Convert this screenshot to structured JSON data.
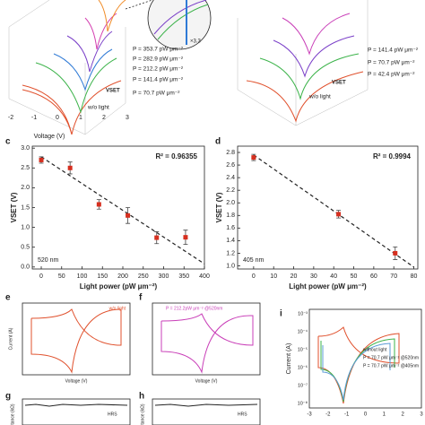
{
  "chart_data": [
    {
      "type": "scatter",
      "panel": "c",
      "ylabel": "VSET (V)",
      "xlabel": "Light power (pW μm⁻²)",
      "annotation": "R² = 0.96355",
      "wavelength": "520 nm",
      "x": [
        0,
        70.7,
        141.4,
        212.2,
        282.9,
        353.7
      ],
      "values": [
        2.7,
        2.5,
        1.58,
        1.3,
        0.74,
        0.75
      ],
      "errors": [
        0.08,
        0.15,
        0.12,
        0.2,
        0.15,
        0.18
      ],
      "color": "#d62f1f",
      "fit": {
        "x": [
          0,
          400
        ],
        "y": [
          2.78,
          0.08
        ]
      },
      "xlim": [
        -22,
        400
      ],
      "ylim": [
        -0.05,
        3.05
      ],
      "xticks": [
        0,
        50,
        100,
        150,
        200,
        250,
        300,
        350,
        400
      ],
      "yticks": [
        {
          "value": 0,
          "label": "0.0"
        },
        0.5,
        {
          "value": 1,
          "label": "1.0"
        },
        1.5,
        {
          "value": 2,
          "label": "2.0"
        },
        2.5,
        {
          "value": 3,
          "label": "3.0"
        }
      ]
    },
    {
      "type": "scatter",
      "panel": "d",
      "ylabel": "VSET (V)",
      "xlabel": "Light power (pW μm⁻²)",
      "annotation": "R² = 0.9994",
      "wavelength": "405 nm",
      "x": [
        0,
        42.4,
        70.7
      ],
      "values": [
        2.72,
        1.82,
        1.2
      ],
      "errors": [
        0.05,
        0.06,
        0.1
      ],
      "color": "#d62f1f",
      "fit": {
        "x": [
          0,
          80
        ],
        "y": [
          2.76,
          0.98
        ]
      },
      "xlim": [
        -8,
        82
      ],
      "ylim": [
        0.95,
        2.9
      ],
      "xticks": [
        0,
        10,
        20,
        30,
        40,
        50,
        60,
        70,
        80
      ],
      "yticks": [
        {
          "value": 1,
          "label": "1.0"
        },
        1.2,
        1.4,
        1.6,
        1.8,
        {
          "value": 2,
          "label": "2.0"
        },
        2.2,
        2.4,
        2.6,
        2.8
      ]
    }
  ],
  "panel_a": {
    "curves": [
      {
        "name": "P = 353.7 pW μm⁻²",
        "color": "#f08a24"
      },
      {
        "name": "P = 282.9 pW μm⁻²",
        "color": "#d43fb0"
      },
      {
        "name": "P = 212.2 pW μm⁻²",
        "color": "#7a3fc8"
      },
      {
        "name": "P = 141.4 pW μm⁻²",
        "color": "#2f7ad6"
      },
      {
        "name": "P = 70.7 pW μm⁻²",
        "color": "#3cb34a"
      },
      {
        "name": "w/o light",
        "color": "#e0502c"
      }
    ],
    "vset": "VSET",
    "inset": "×3.3",
    "xlabel": "Voltage (V)",
    "xticks": [
      -2,
      -1,
      0,
      1,
      2,
      3
    ]
  },
  "panel_b": {
    "curves": [
      {
        "name": "P = 141.4 pW μm⁻²",
        "color": "#c93fb8"
      },
      {
        "name": "P = 70.7 pW μm⁻²",
        "color": "#7a3fc8"
      },
      {
        "name": "P = 42.4 pW μm⁻²",
        "color": "#3cb34a"
      },
      {
        "name": "w/o light",
        "color": "#e0502c"
      }
    ],
    "vset": "VSET"
  },
  "panel_e": {
    "label": "e",
    "ylabel": "Current (A)",
    "xlabel": "Voltage (V)",
    "legend": "w/o light"
  },
  "panel_f": {
    "label": "f",
    "xlabel": "Voltage (V)",
    "legend": "P = 212.2pW μm⁻² @520nm"
  },
  "panel_g": {
    "label": "g",
    "ylabel": "tance (kΩ)",
    "text": "HRS"
  },
  "panel_h": {
    "label": "h",
    "ylabel": "tance (kΩ)",
    "text": "HRS"
  },
  "panel_i": {
    "label": "i",
    "ylabel": "Current (A)",
    "legend": [
      {
        "name": "without light",
        "color": "#e0502c"
      },
      {
        "name": "P = 70.7 pW μm⁻² @520nm",
        "color": "#3cb34a"
      },
      {
        "name": "P = 70.7 pW μm⁻² @405nm",
        "color": "#5b9bd5"
      }
    ],
    "yticks": [
      "10⁻³",
      "10⁻⁴",
      "10⁻⁵",
      "10⁻⁶",
      "10⁻⁷",
      "10⁻⁸"
    ],
    "xticks": [
      -3,
      -2,
      -1,
      0,
      1,
      2,
      3
    ]
  }
}
